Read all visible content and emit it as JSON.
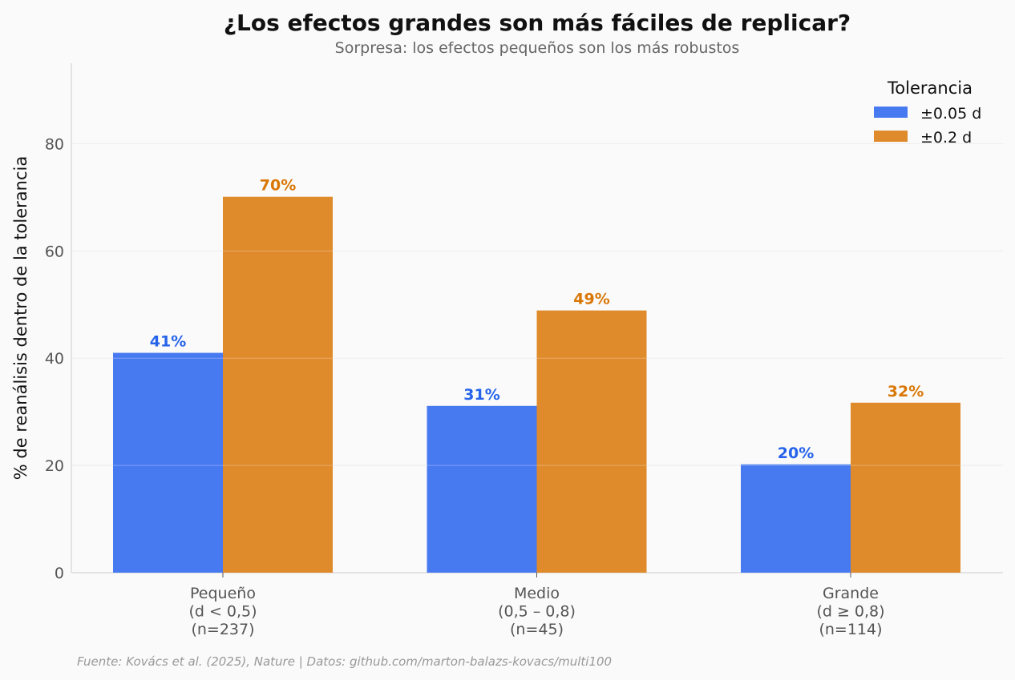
{
  "chart_data": {
    "type": "bar",
    "title": "¿Los efectos grandes son más fáciles de replicar?",
    "subtitle": "Sorpresa: los efectos pequeños son los más robustos",
    "xlabel": "",
    "ylabel": "% de reanálisis dentro de la tolerancia",
    "ylim": [
      0,
      95
    ],
    "yticks": [
      0,
      20,
      40,
      60,
      80
    ],
    "grid": true,
    "categories": [
      [
        "Pequeño",
        "(d < 0,5)",
        "(n=237)"
      ],
      [
        "Medio",
        "(0,5 – 0,8)",
        "(n=45)"
      ],
      [
        "Grande",
        "(d ≥ 0,8)",
        "(n=114)"
      ]
    ],
    "legend": {
      "title": "Tolerancia",
      "placement": "top-right"
    },
    "series": [
      {
        "name": "±0.05 d",
        "color": "#4779f0",
        "label_color": "#2563eb",
        "values": [
          41.0,
          31.1,
          20.2
        ],
        "labels": [
          "41%",
          "31%",
          "20%"
        ]
      },
      {
        "name": "±0.2 d",
        "color": "#df8a2b",
        "label_color": "#d97706",
        "values": [
          70.1,
          48.9,
          31.7
        ],
        "labels": [
          "70%",
          "49%",
          "32%"
        ]
      }
    ]
  },
  "footer": "Fuente: Kovács et al. (2025), Nature | Datos: github.com/marton-balazs-kovacs/multi100"
}
